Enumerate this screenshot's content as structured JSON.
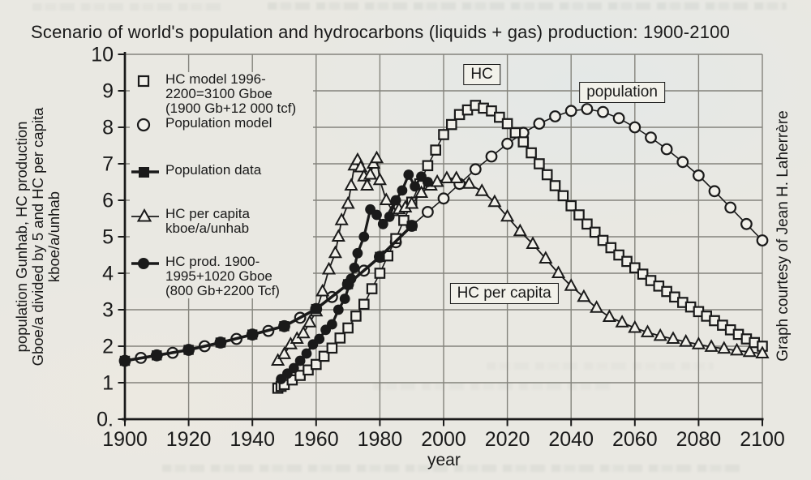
{
  "page": {
    "credit": "Graph courtesy of Jean H. Laherrère"
  },
  "legend": {
    "items": [
      {
        "marker": "open-square",
        "lines": [
          "HC model 1996-",
          "2200=3100 Gboe",
          "(1900 Gb+12 000 tcf)"
        ]
      },
      {
        "marker": "open-circle",
        "lines": [
          "Population model"
        ]
      },
      {
        "marker": "filled-square-on-line",
        "lines": [
          "Population data"
        ]
      },
      {
        "marker": "open-triangle-on-line",
        "lines": [
          "HC per capita",
          "kboe/a/unhab"
        ]
      },
      {
        "marker": "filled-circle-on-line",
        "lines": [
          "HC prod. 1900-",
          "1995+1020 Gboe",
          "(800 Gb+2200 Tcf)"
        ]
      }
    ]
  },
  "chart_data": {
    "type": "line",
    "title": "Scenario of world's population and hydrocarbons (liquids + gas) production: 1900-2100",
    "xlabel": "year",
    "ylabel_lines": [
      "population Gunhab, HC production",
      "Gboe/a divided by 5 and HC per capita",
      "kboe/a/unhab"
    ],
    "xlim": [
      1900,
      2100
    ],
    "ylim": [
      0,
      10
    ],
    "xticks": [
      1900,
      1920,
      1940,
      1960,
      1980,
      2000,
      2020,
      2040,
      2060,
      2080,
      2100
    ],
    "yticks": [
      0,
      1,
      2,
      3,
      4,
      5,
      6,
      7,
      8,
      9,
      10
    ],
    "ytick_labels": [
      "0.",
      "1",
      "2",
      "3",
      "4",
      "5",
      "6",
      "7",
      "8",
      "9",
      "10"
    ],
    "grid": true,
    "legend_position": "upper-left-inside",
    "colors": {
      "ink": "#1a1a1a",
      "paper": "#e9e8e2",
      "grid": "#84837c",
      "marker_fill": "#f1f0ea"
    },
    "annotations": [
      {
        "text": "HC",
        "x": 2012,
        "y": 9.45
      },
      {
        "text": "population",
        "x": 2056,
        "y": 8.95
      },
      {
        "text": "HC per capita",
        "x": 2019,
        "y": 3.45
      }
    ],
    "series": [
      {
        "id": "population-model",
        "name": "Population model",
        "marker": "open-circle",
        "line_width": 1.6,
        "points": [
          [
            1900,
            1.6
          ],
          [
            1905,
            1.68
          ],
          [
            1910,
            1.75
          ],
          [
            1915,
            1.82
          ],
          [
            1920,
            1.9
          ],
          [
            1925,
            2.0
          ],
          [
            1930,
            2.1
          ],
          [
            1935,
            2.2
          ],
          [
            1940,
            2.32
          ],
          [
            1945,
            2.42
          ],
          [
            1950,
            2.55
          ],
          [
            1955,
            2.78
          ],
          [
            1960,
            3.02
          ],
          [
            1965,
            3.35
          ],
          [
            1970,
            3.7
          ],
          [
            1975,
            4.07
          ],
          [
            1980,
            4.45
          ],
          [
            1985,
            4.85
          ],
          [
            1990,
            5.3
          ],
          [
            1995,
            5.68
          ],
          [
            2000,
            6.05
          ],
          [
            2005,
            6.45
          ],
          [
            2010,
            6.85
          ],
          [
            2015,
            7.2
          ],
          [
            2020,
            7.55
          ],
          [
            2025,
            7.85
          ],
          [
            2030,
            8.1
          ],
          [
            2035,
            8.3
          ],
          [
            2040,
            8.45
          ],
          [
            2045,
            8.5
          ],
          [
            2050,
            8.42
          ],
          [
            2055,
            8.25
          ],
          [
            2060,
            8.0
          ],
          [
            2065,
            7.72
          ],
          [
            2070,
            7.4
          ],
          [
            2075,
            7.05
          ],
          [
            2080,
            6.68
          ],
          [
            2085,
            6.25
          ],
          [
            2090,
            5.8
          ],
          [
            2095,
            5.35
          ],
          [
            2100,
            4.9
          ]
        ]
      },
      {
        "id": "hc-model",
        "name": "HC model 1996-2200=3100 Gboe (1900 Gb+12 000 tcf)",
        "marker": "open-square",
        "line_width": 1.6,
        "densify": true,
        "points": [
          [
            1948,
            0.85
          ],
          [
            1950,
            0.95
          ],
          [
            1955,
            1.2
          ],
          [
            1960,
            1.5
          ],
          [
            1965,
            1.95
          ],
          [
            1970,
            2.5
          ],
          [
            1975,
            3.15
          ],
          [
            1980,
            4.0
          ],
          [
            1985,
            4.95
          ],
          [
            1990,
            5.95
          ],
          [
            1995,
            6.95
          ],
          [
            2000,
            7.8
          ],
          [
            2005,
            8.35
          ],
          [
            2010,
            8.6
          ],
          [
            2015,
            8.45
          ],
          [
            2020,
            8.1
          ],
          [
            2025,
            7.6
          ],
          [
            2030,
            7.0
          ],
          [
            2035,
            6.4
          ],
          [
            2040,
            5.85
          ],
          [
            2045,
            5.35
          ],
          [
            2050,
            4.9
          ],
          [
            2055,
            4.5
          ],
          [
            2060,
            4.15
          ],
          [
            2065,
            3.8
          ],
          [
            2070,
            3.5
          ],
          [
            2075,
            3.2
          ],
          [
            2080,
            2.95
          ],
          [
            2085,
            2.7
          ],
          [
            2090,
            2.45
          ],
          [
            2095,
            2.2
          ],
          [
            2100,
            2.0
          ]
        ]
      },
      {
        "id": "hc-per-capita",
        "name": "HC per capita kboe/a/unhab",
        "marker": "open-triangle",
        "line_width": 1.8,
        "points": [
          [
            1948,
            1.6
          ],
          [
            1950,
            1.78
          ],
          [
            1952,
            2.05
          ],
          [
            1954,
            2.2
          ],
          [
            1956,
            2.35
          ],
          [
            1958,
            2.65
          ],
          [
            1960,
            2.95
          ],
          [
            1962,
            3.5
          ],
          [
            1964,
            4.1
          ],
          [
            1966,
            4.55
          ],
          [
            1967,
            5.0
          ],
          [
            1968,
            5.45
          ],
          [
            1970,
            5.9
          ],
          [
            1971,
            6.4
          ],
          [
            1972,
            6.95
          ],
          [
            1973,
            7.1
          ],
          [
            1974,
            6.9
          ],
          [
            1975,
            6.65
          ],
          [
            1976,
            6.4
          ],
          [
            1977,
            6.7
          ],
          [
            1978,
            7.0
          ],
          [
            1979,
            7.15
          ],
          [
            1980,
            6.55
          ],
          [
            1982,
            6.0
          ],
          [
            1984,
            5.7
          ],
          [
            1986,
            5.75
          ],
          [
            1988,
            5.8
          ],
          [
            1990,
            5.9
          ],
          [
            1993,
            6.2
          ],
          [
            1996,
            6.4
          ],
          [
            1998,
            6.5
          ],
          [
            2001,
            6.6
          ],
          [
            2004,
            6.6
          ],
          [
            2008,
            6.45
          ],
          [
            2012,
            6.25
          ],
          [
            2016,
            5.95
          ],
          [
            2020,
            5.55
          ],
          [
            2024,
            5.15
          ],
          [
            2028,
            4.8
          ],
          [
            2032,
            4.4
          ],
          [
            2036,
            4.0
          ],
          [
            2040,
            3.65
          ],
          [
            2044,
            3.35
          ],
          [
            2048,
            3.05
          ],
          [
            2052,
            2.8
          ],
          [
            2056,
            2.65
          ],
          [
            2060,
            2.5
          ],
          [
            2064,
            2.38
          ],
          [
            2068,
            2.28
          ],
          [
            2072,
            2.2
          ],
          [
            2076,
            2.12
          ],
          [
            2080,
            2.05
          ],
          [
            2084,
            1.98
          ],
          [
            2088,
            1.93
          ],
          [
            2092,
            1.88
          ],
          [
            2096,
            1.84
          ],
          [
            2100,
            1.8
          ]
        ]
      },
      {
        "id": "hc-prod",
        "name": "HC prod. 1900-1995+1020 Gboe (800 Gb+2200 Tcf)",
        "marker": "filled-circle",
        "line_width": 3.2,
        "points": [
          [
            1949,
            1.1
          ],
          [
            1951,
            1.25
          ],
          [
            1953,
            1.4
          ],
          [
            1955,
            1.6
          ],
          [
            1957,
            1.8
          ],
          [
            1959,
            2.05
          ],
          [
            1961,
            2.2
          ],
          [
            1963,
            2.45
          ],
          [
            1965,
            2.6
          ],
          [
            1967,
            3.0
          ],
          [
            1969,
            3.3
          ],
          [
            1971,
            3.85
          ],
          [
            1972,
            4.15
          ],
          [
            1973,
            4.55
          ],
          [
            1975,
            5.0
          ],
          [
            1977,
            5.75
          ],
          [
            1979,
            5.6
          ],
          [
            1981,
            5.35
          ],
          [
            1983,
            5.55
          ],
          [
            1985,
            6.0
          ],
          [
            1987,
            6.27
          ],
          [
            1989,
            6.7
          ],
          [
            1991,
            6.38
          ],
          [
            1993,
            6.65
          ],
          [
            1995,
            6.5
          ]
        ]
      },
      {
        "id": "population-data",
        "name": "Population data",
        "marker": "filled-square",
        "line_width": 3.6,
        "points": [
          [
            1900,
            1.6
          ],
          [
            1910,
            1.75
          ],
          [
            1920,
            1.9
          ],
          [
            1930,
            2.1
          ],
          [
            1940,
            2.32
          ],
          [
            1950,
            2.55
          ],
          [
            1960,
            3.02
          ],
          [
            1970,
            3.7
          ],
          [
            1980,
            4.45
          ],
          [
            1990,
            5.3
          ]
        ]
      }
    ]
  }
}
